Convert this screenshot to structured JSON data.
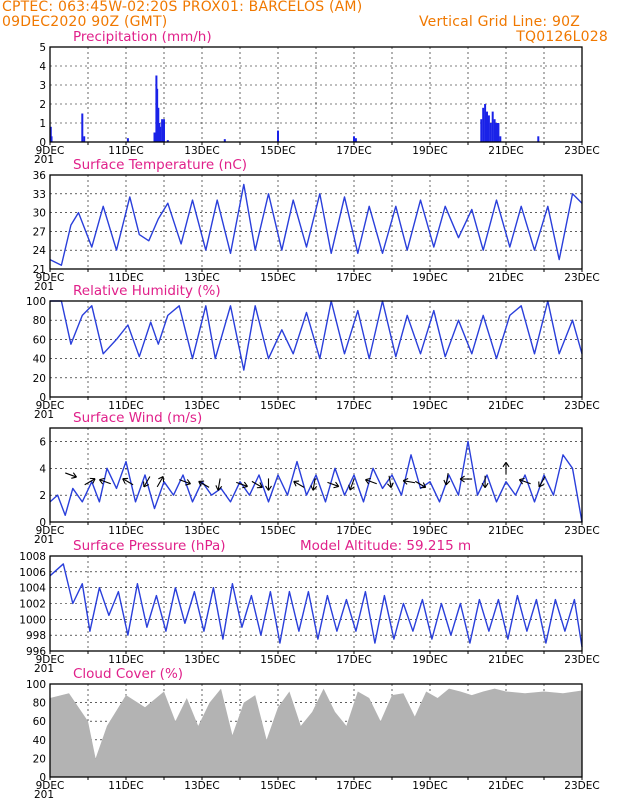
{
  "header": {
    "line1_left": "CPTEC:  063:45W-02:20S   PROX01: BARCELOS (AM)",
    "line2_left": "09DEC2020 90Z (GMT)",
    "line2_right": "Vertical Grid Line: 90Z",
    "line3_right": "TQ0126L028"
  },
  "x_ticks": [
    "9DEC",
    "11DEC",
    "13DEC",
    "15DEC",
    "17DEC",
    "19DEC",
    "21DEC",
    "23DEC"
  ],
  "x_stub": "201",
  "colors": {
    "line": "#2a3fdb",
    "bar": "#1a22e8",
    "cloud": "#b3b3b3",
    "title": "#e0208a",
    "header": "#f07800"
  },
  "chart_data": [
    {
      "type": "bar",
      "title": "Precipitation (mm/h)",
      "ylim": [
        0,
        5
      ],
      "yticks": [
        "0",
        "1",
        "2",
        "3",
        "4",
        "5"
      ],
      "x_days": [
        0.02,
        0.04,
        0.85,
        0.9,
        2.05,
        2.75,
        2.8,
        2.82,
        2.85,
        2.88,
        2.9,
        2.95,
        3.0,
        3.1,
        4.6,
        6.0,
        8.0,
        8.05,
        11.35,
        11.4,
        11.45,
        11.5,
        11.55,
        11.6,
        11.65,
        11.7,
        11.75,
        11.8,
        11.85,
        12.85
      ],
      "values": [
        0.8,
        0.3,
        1.5,
        0.3,
        0.2,
        0.5,
        3.5,
        2.8,
        1.8,
        1.0,
        0.8,
        1.2,
        1.2,
        0.1,
        0.15,
        0.6,
        0.3,
        0.2,
        1.2,
        1.8,
        2.0,
        1.6,
        1.4,
        1.0,
        1.6,
        1.2,
        1.0,
        1.0,
        0.3,
        0.3
      ]
    },
    {
      "type": "line",
      "title": "Surface Temperature (nC)",
      "ylim": [
        21,
        36
      ],
      "yticks": [
        "21",
        "24",
        "27",
        "30",
        "33",
        "36"
      ],
      "x": [
        0,
        0.3,
        0.55,
        0.75,
        1.1,
        1.4,
        1.75,
        2.1,
        2.35,
        2.6,
        2.85,
        3.1,
        3.45,
        3.75,
        4.1,
        4.4,
        4.75,
        5.1,
        5.4,
        5.75,
        6.1,
        6.4,
        6.75,
        7.1,
        7.4,
        7.75,
        8.1,
        8.4,
        8.75,
        9.1,
        9.4,
        9.75,
        10.1,
        10.4,
        10.75,
        11.1,
        11.4,
        11.75,
        12.1,
        12.4,
        12.75,
        13.1,
        13.4,
        13.75,
        14.0
      ],
      "y": [
        22.5,
        21.6,
        28.0,
        30.0,
        24.5,
        31.0,
        24.0,
        32.5,
        26.5,
        25.5,
        29.0,
        31.5,
        25.0,
        32.0,
        24.0,
        32.0,
        23.5,
        34.5,
        24.0,
        33.0,
        24.0,
        32.0,
        24.5,
        33.0,
        23.5,
        32.5,
        23.5,
        31.0,
        23.5,
        31.0,
        24.0,
        32.0,
        24.5,
        31.0,
        26.0,
        30.5,
        24.0,
        32.0,
        24.5,
        31.0,
        24.0,
        31.0,
        22.5,
        33.0,
        31.5
      ]
    },
    {
      "type": "line",
      "title": "Relative Humidity (%)",
      "ylim": [
        0,
        100
      ],
      "yticks": [
        "0",
        "20",
        "40",
        "60",
        "80",
        "100"
      ],
      "x": [
        0,
        0.3,
        0.55,
        0.85,
        1.1,
        1.4,
        1.75,
        2.05,
        2.35,
        2.65,
        2.85,
        3.1,
        3.4,
        3.75,
        4.1,
        4.35,
        4.75,
        5.1,
        5.4,
        5.75,
        6.1,
        6.4,
        6.75,
        7.1,
        7.4,
        7.75,
        8.1,
        8.4,
        8.75,
        9.1,
        9.4,
        9.75,
        10.1,
        10.4,
        10.75,
        11.1,
        11.4,
        11.75,
        12.1,
        12.4,
        12.75,
        13.1,
        13.4,
        13.75,
        14.0
      ],
      "y": [
        100,
        100,
        55,
        85,
        95,
        45,
        60,
        75,
        42,
        78,
        55,
        85,
        95,
        40,
        95,
        40,
        95,
        28,
        95,
        40,
        70,
        45,
        88,
        40,
        100,
        45,
        90,
        40,
        100,
        42,
        85,
        45,
        90,
        42,
        80,
        45,
        85,
        40,
        85,
        95,
        45,
        100,
        45,
        80,
        45
      ]
    },
    {
      "type": "line",
      "title": "Surface Wind (m/s)",
      "ylim": [
        0,
        7
      ],
      "yticks": [
        "0",
        "2",
        "4",
        "6"
      ],
      "x": [
        0,
        0.2,
        0.4,
        0.6,
        0.85,
        1.1,
        1.3,
        1.5,
        1.75,
        2.0,
        2.25,
        2.5,
        2.75,
        3.0,
        3.25,
        3.5,
        3.75,
        4.0,
        4.25,
        4.5,
        4.75,
        5.0,
        5.25,
        5.5,
        5.75,
        6.0,
        6.25,
        6.5,
        6.75,
        7.0,
        7.25,
        7.5,
        7.75,
        8.0,
        8.25,
        8.5,
        8.75,
        9.0,
        9.25,
        9.5,
        9.75,
        10.0,
        10.25,
        10.5,
        10.75,
        11.0,
        11.25,
        11.5,
        11.75,
        12.0,
        12.25,
        12.5,
        12.75,
        13.0,
        13.25,
        13.5,
        13.75,
        14.0
      ],
      "y": [
        1.5,
        2.0,
        0.5,
        2.5,
        1.5,
        3.0,
        1.5,
        4.0,
        2.5,
        4.5,
        1.5,
        3.5,
        1.0,
        3.0,
        2.0,
        3.5,
        1.5,
        3.0,
        2.0,
        2.5,
        1.5,
        3.0,
        2.0,
        3.5,
        1.5,
        3.5,
        2.0,
        4.5,
        2.0,
        3.5,
        1.5,
        4.0,
        2.0,
        3.5,
        1.5,
        4.0,
        2.5,
        3.5,
        2.0,
        5.0,
        2.5,
        3.0,
        1.5,
        3.5,
        2.0,
        6.0,
        2.0,
        3.5,
        1.5,
        3.0,
        2.0,
        3.5,
        1.5,
        3.5,
        2.0,
        5.0,
        4.0,
        0.0
      ]
    },
    {
      "type": "line",
      "title": "Surface Pressure (hPa)",
      "annotation": "Model Altitude: 59.215 m",
      "ylim": [
        996,
        1008
      ],
      "yticks": [
        "996",
        "998",
        "1000",
        "1002",
        "1004",
        "1006",
        "1008"
      ],
      "x": [
        0,
        0.35,
        0.6,
        0.85,
        1.05,
        1.3,
        1.55,
        1.8,
        2.05,
        2.3,
        2.55,
        2.8,
        3.05,
        3.3,
        3.55,
        3.8,
        4.05,
        4.3,
        4.55,
        4.8,
        5.05,
        5.3,
        5.55,
        5.8,
        6.05,
        6.3,
        6.55,
        6.8,
        7.05,
        7.3,
        7.55,
        7.8,
        8.05,
        8.3,
        8.55,
        8.8,
        9.05,
        9.3,
        9.55,
        9.8,
        10.05,
        10.3,
        10.55,
        10.8,
        11.05,
        11.3,
        11.55,
        11.8,
        12.05,
        12.3,
        12.55,
        12.8,
        13.05,
        13.3,
        13.55,
        13.8,
        14.0
      ],
      "y": [
        1005.5,
        1007.0,
        1002.0,
        1004.5,
        998.5,
        1004.0,
        1000.5,
        1003.5,
        998.0,
        1004.5,
        999.0,
        1003.0,
        998.5,
        1004.0,
        999.5,
        1003.5,
        998.5,
        1004.0,
        997.5,
        1004.5,
        999.0,
        1003.0,
        998.0,
        1003.5,
        997.0,
        1003.5,
        998.5,
        1003.5,
        997.5,
        1003.0,
        998.5,
        1002.5,
        998.5,
        1003.5,
        997.0,
        1003.0,
        997.5,
        1002.0,
        998.5,
        1002.5,
        997.5,
        1002.0,
        998.0,
        1002.0,
        997.0,
        1002.5,
        998.5,
        1002.5,
        997.5,
        1003.0,
        998.5,
        1002.5,
        997.0,
        1002.5,
        998.5,
        1002.5,
        996.5
      ]
    },
    {
      "type": "area",
      "title": "Cloud Cover (%)",
      "ylim": [
        0,
        100
      ],
      "yticks": [
        "0",
        "20",
        "40",
        "60",
        "80",
        "100"
      ],
      "x": [
        0,
        0.5,
        1.0,
        1.2,
        1.5,
        2.0,
        2.5,
        3.0,
        3.3,
        3.6,
        3.9,
        4.2,
        4.5,
        4.8,
        5.1,
        5.4,
        5.7,
        6.0,
        6.3,
        6.6,
        6.9,
        7.2,
        7.5,
        7.8,
        8.1,
        8.4,
        8.7,
        9.0,
        9.3,
        9.6,
        9.9,
        10.2,
        10.5,
        10.8,
        11.1,
        11.4,
        11.7,
        12.0,
        12.5,
        13.0,
        13.5,
        14.0
      ],
      "y": [
        85,
        90,
        60,
        20,
        55,
        88,
        75,
        92,
        60,
        85,
        55,
        80,
        95,
        45,
        80,
        88,
        40,
        75,
        92,
        55,
        70,
        95,
        70,
        55,
        92,
        85,
        60,
        88,
        90,
        65,
        92,
        85,
        95,
        92,
        88,
        92,
        95,
        92,
        90,
        92,
        90,
        93
      ]
    }
  ],
  "wind_arrows": [
    {
      "day": 0.55,
      "value": 3.5,
      "angle": 20
    },
    {
      "day": 1.05,
      "value": 3.0,
      "angle": -30
    },
    {
      "day": 1.45,
      "value": 3.0,
      "angle": 200
    },
    {
      "day": 2.05,
      "value": 3.0,
      "angle": 210
    },
    {
      "day": 2.55,
      "value": 3.0,
      "angle": 120
    },
    {
      "day": 2.9,
      "value": 3.0,
      "angle": -60
    },
    {
      "day": 3.55,
      "value": 3.0,
      "angle": 20
    },
    {
      "day": 4.05,
      "value": 2.8,
      "angle": 210
    },
    {
      "day": 4.45,
      "value": 2.8,
      "angle": 100
    },
    {
      "day": 5.05,
      "value": 2.8,
      "angle": 20
    },
    {
      "day": 5.45,
      "value": 2.8,
      "angle": 30
    },
    {
      "day": 5.75,
      "value": 2.8,
      "angle": 90
    },
    {
      "day": 6.55,
      "value": 2.8,
      "angle": -150
    },
    {
      "day": 6.95,
      "value": 2.8,
      "angle": 100
    },
    {
      "day": 7.45,
      "value": 2.8,
      "angle": 20
    },
    {
      "day": 7.95,
      "value": 2.8,
      "angle": 110
    },
    {
      "day": 8.45,
      "value": 3.0,
      "angle": 200
    },
    {
      "day": 8.95,
      "value": 3.0,
      "angle": 80
    },
    {
      "day": 9.45,
      "value": 3.0,
      "angle": 190
    },
    {
      "day": 9.75,
      "value": 2.8,
      "angle": 30
    },
    {
      "day": 10.45,
      "value": 3.2,
      "angle": 100
    },
    {
      "day": 10.95,
      "value": 3.2,
      "angle": 180
    },
    {
      "day": 11.45,
      "value": 3.0,
      "angle": 90
    },
    {
      "day": 12.0,
      "value": 4.0,
      "angle": -90
    },
    {
      "day": 12.5,
      "value": 3.0,
      "angle": 200
    },
    {
      "day": 12.95,
      "value": 3.0,
      "angle": 120
    }
  ]
}
